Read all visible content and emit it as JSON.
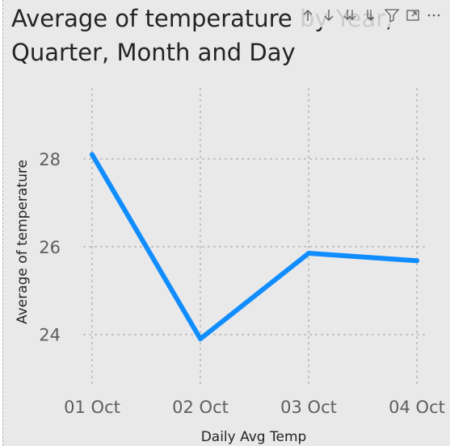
{
  "visual": {
    "title": "Average of temperature by Year, Quarter, Month and Day",
    "header_icons": [
      {
        "name": "drill-up-icon"
      },
      {
        "name": "drill-down-icon"
      },
      {
        "name": "expand-all-down-icon"
      },
      {
        "name": "drill-into-icon"
      },
      {
        "name": "filter-icon"
      },
      {
        "name": "focus-mode-icon"
      },
      {
        "name": "more-options-icon"
      }
    ]
  },
  "chart_data": {
    "type": "line",
    "categories": [
      "01 Oct",
      "02 Oct",
      "03 Oct",
      "04 Oct"
    ],
    "series": [
      {
        "values": [
          28.1,
          23.9,
          25.85,
          25.68
        ],
        "color": "#118dff"
      }
    ],
    "xlabel": "Daily Avg Temp",
    "ylabel": "Average of temperature",
    "yticks": [
      24,
      26,
      28
    ],
    "ylim": [
      22.8,
      29.6
    ],
    "grid": true,
    "gridline_style": "dotted"
  }
}
